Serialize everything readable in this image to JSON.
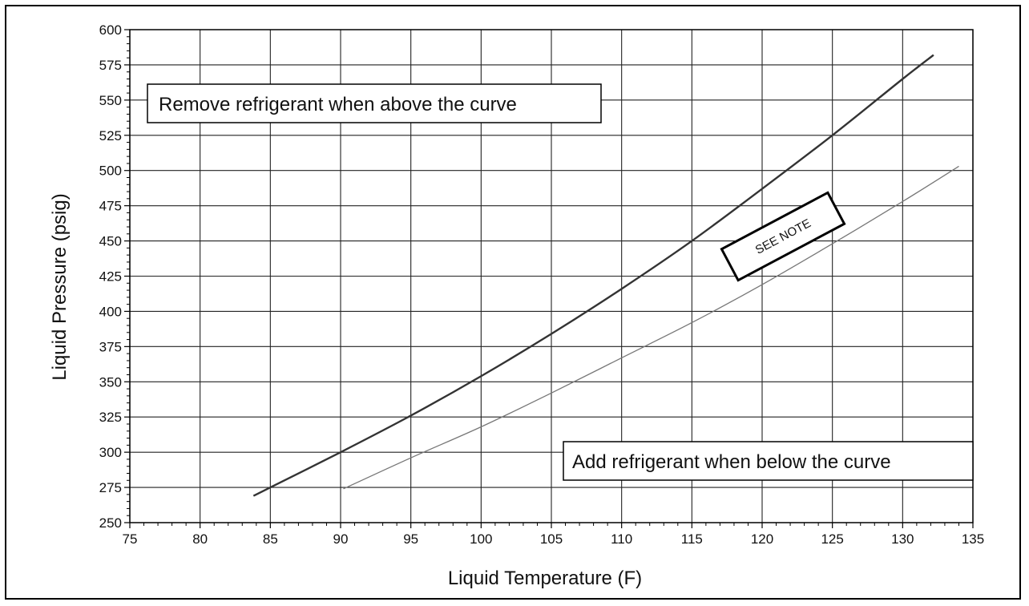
{
  "chart_data": {
    "type": "line",
    "title": "",
    "xlabel": "Liquid Temperature (F)",
    "ylabel": "Liquid Pressure (psig)",
    "xlim": [
      75,
      135
    ],
    "ylim": [
      250,
      600
    ],
    "xticks": [
      75,
      80,
      85,
      90,
      95,
      100,
      105,
      110,
      115,
      120,
      125,
      130,
      135
    ],
    "yticks": [
      250,
      275,
      300,
      325,
      350,
      375,
      400,
      425,
      450,
      475,
      500,
      525,
      550,
      575,
      600
    ],
    "grid": true,
    "series": [
      {
        "color": "#333333",
        "x": [
          83.8,
          85,
          90,
          95,
          100,
          105,
          110,
          115,
          120,
          125,
          130,
          132.2
        ],
        "y": [
          269,
          275,
          300,
          326,
          354,
          384,
          416,
          450,
          487,
          525,
          565,
          582
        ]
      },
      {
        "color": "#777777",
        "x": [
          90.2,
          95,
          100,
          105,
          110,
          115,
          120,
          125,
          130,
          134
        ],
        "y": [
          274,
          296,
          318,
          342,
          367,
          392,
          419,
          448,
          478,
          503
        ]
      }
    ],
    "annotations": [
      {
        "text": "Remove refrigerant when above the curve"
      },
      {
        "text": "Add refrigerant when below the curve"
      },
      {
        "text": "SEE NOTE"
      }
    ]
  }
}
